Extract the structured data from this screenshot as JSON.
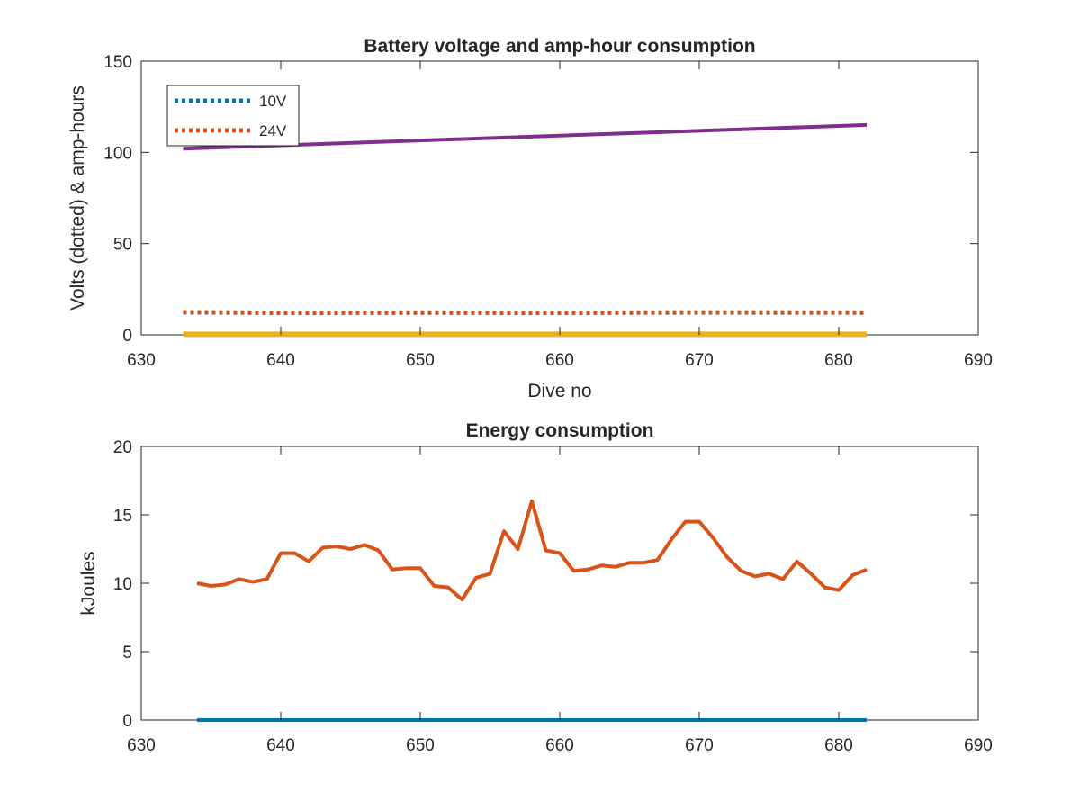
{
  "chart_data": [
    {
      "type": "line",
      "title": "Battery voltage and amp-hour consumption",
      "xlabel": "Dive no",
      "ylabel": "Volts (dotted) & amp-hours",
      "xlim": [
        630,
        690
      ],
      "ylim": [
        0,
        150
      ],
      "xticks": [
        "630",
        "640",
        "650",
        "660",
        "670",
        "680",
        "690"
      ],
      "yticks": [
        "0",
        "50",
        "100",
        "150"
      ],
      "legend_position": "top-left",
      "series": [
        {
          "name": "10V",
          "color": "#0072BD",
          "style": "dotted",
          "x": [
            633,
            640,
            650,
            660,
            670,
            682
          ],
          "y": [
            12.2,
            11.9,
            12.0,
            11.9,
            12.1,
            12.0
          ]
        },
        {
          "name": "24V",
          "color": "#D95319",
          "style": "dotted",
          "x": [
            633,
            640,
            650,
            660,
            670,
            682
          ],
          "y": [
            12.6,
            12.3,
            12.4,
            12.3,
            12.5,
            12.4
          ]
        },
        {
          "color": "#EDB120",
          "style": "solid",
          "x": [
            633,
            682
          ],
          "y": [
            0.3,
            0.3
          ]
        },
        {
          "color": "#7E2F8E",
          "style": "solid",
          "x": [
            633,
            682
          ],
          "y": [
            102,
            115
          ]
        }
      ]
    },
    {
      "type": "line",
      "title": "Energy consumption",
      "xlabel": "",
      "ylabel": "kJoules",
      "xlim": [
        630,
        690
      ],
      "ylim": [
        0,
        20
      ],
      "xticks": [
        "630",
        "640",
        "650",
        "660",
        "670",
        "680",
        "690"
      ],
      "yticks": [
        "0",
        "5",
        "10",
        "15",
        "20"
      ],
      "series": [
        {
          "color": "#0072BD",
          "style": "solid",
          "x": [
            634,
            682
          ],
          "y": [
            0,
            0
          ]
        },
        {
          "color": "#D95319",
          "style": "solid",
          "x": [
            634,
            635,
            636,
            637,
            638,
            639,
            640,
            641,
            642,
            643,
            644,
            645,
            646,
            647,
            648,
            649,
            650,
            651,
            652,
            653,
            654,
            655,
            656,
            657,
            658,
            659,
            660,
            661,
            662,
            663,
            664,
            665,
            666,
            667,
            668,
            669,
            670,
            671,
            672,
            673,
            674,
            675,
            676,
            677,
            678,
            679,
            680,
            681,
            682
          ],
          "y": [
            10.0,
            9.8,
            9.9,
            10.3,
            10.1,
            10.3,
            12.2,
            12.2,
            11.6,
            12.6,
            12.7,
            12.5,
            12.8,
            12.4,
            11.0,
            11.1,
            11.1,
            9.8,
            9.7,
            8.8,
            10.4,
            10.7,
            13.8,
            12.5,
            16.0,
            12.4,
            12.2,
            10.9,
            11.0,
            11.3,
            11.2,
            11.5,
            11.5,
            11.7,
            13.2,
            14.5,
            14.5,
            13.3,
            11.9,
            10.9,
            10.5,
            10.7,
            10.3,
            11.6,
            10.7,
            9.7,
            9.5,
            10.6,
            11.0
          ]
        }
      ]
    }
  ]
}
